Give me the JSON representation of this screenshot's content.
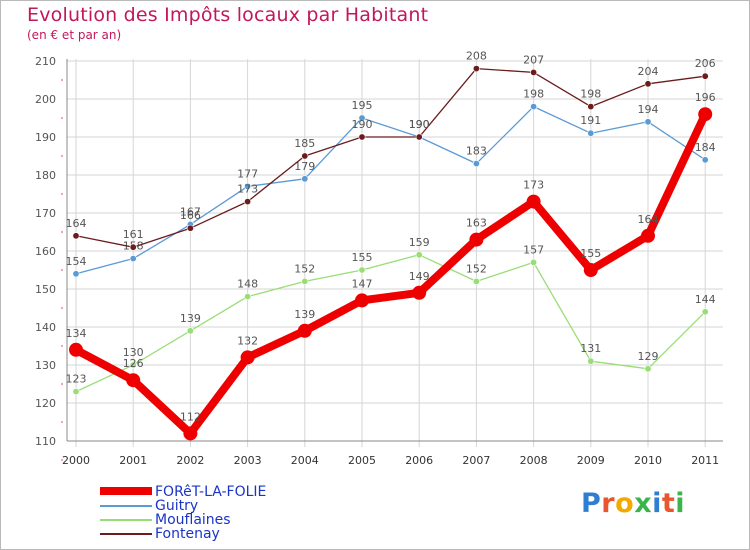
{
  "title": "Evolution des Impôts locaux par Habitant",
  "subtitle": "(en € et par an)",
  "chart_data": {
    "type": "line",
    "title": "Evolution des Impôts locaux par Habitant",
    "subtitle": "(en € et par an)",
    "xlabel": "",
    "ylabel": "",
    "ylim": [
      110,
      210
    ],
    "yticks": [
      110,
      120,
      130,
      140,
      150,
      160,
      170,
      180,
      190,
      200,
      210
    ],
    "grid": true,
    "legend_position": "bottom-left",
    "x": [
      "2000",
      "2001",
      "2002",
      "2003",
      "2004",
      "2005",
      "2006",
      "2007",
      "2008",
      "2009",
      "2010",
      "2011"
    ],
    "series": [
      {
        "name": "FORêT-LA-FOLIE",
        "color": "#ee0000",
        "emphasis": true,
        "values": [
          134,
          126,
          112,
          132,
          139,
          147,
          149,
          163,
          173,
          155,
          164,
          196
        ]
      },
      {
        "name": "Guitry",
        "color": "#5b9bd5",
        "emphasis": false,
        "values": [
          154,
          158,
          167,
          177,
          179,
          195,
          190,
          183,
          198,
          191,
          194,
          184
        ]
      },
      {
        "name": "Mouflaines",
        "color": "#99dd77",
        "emphasis": false,
        "values": [
          123,
          130,
          139,
          148,
          152,
          155,
          159,
          152,
          157,
          131,
          129,
          144
        ]
      },
      {
        "name": "Fontenay",
        "color": "#6b1c1c",
        "emphasis": false,
        "values": [
          164,
          161,
          166,
          173,
          185,
          190,
          190,
          208,
          207,
          198,
          204,
          206
        ]
      }
    ]
  },
  "legend": [
    {
      "label": "FORêT-LA-FOLIE"
    },
    {
      "label": "Guitry"
    },
    {
      "label": "Mouflaines"
    },
    {
      "label": "Fontenay"
    }
  ],
  "logo": {
    "letters": [
      "P",
      "r",
      "o",
      "x",
      "i",
      "t",
      "i"
    ],
    "colors": [
      "#2e7fd1",
      "#e8552f",
      "#f2a900",
      "#3bb54a",
      "#2e7fd1",
      "#e8552f",
      "#3bb54a"
    ]
  }
}
